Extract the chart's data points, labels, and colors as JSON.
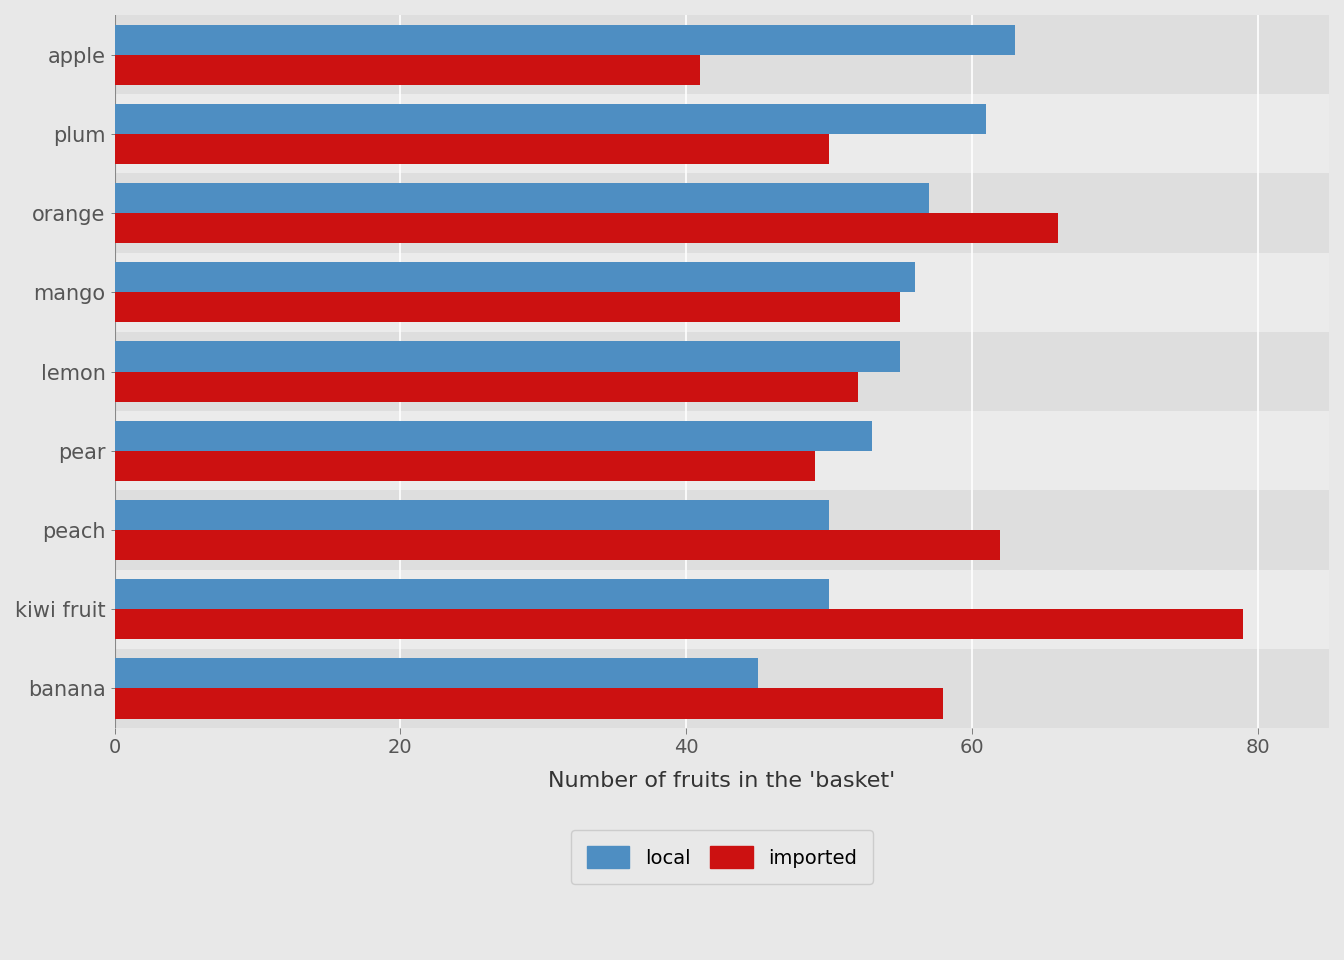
{
  "categories": [
    "apple",
    "plum",
    "orange",
    "mango",
    "lemon",
    "pear",
    "peach",
    "kiwi fruit",
    "banana"
  ],
  "local": [
    63,
    61,
    57,
    56,
    55,
    53,
    50,
    50,
    45
  ],
  "imported": [
    41,
    50,
    66,
    55,
    52,
    49,
    62,
    79,
    58
  ],
  "local_color": "#4e8ec2",
  "imported_color": "#cc1111",
  "outer_background_color": "#e8e8e8",
  "plot_bg_color": "#ebebeb",
  "band_color_dark": "#dedede",
  "band_color_light": "#ebebeb",
  "grid_color": "#ffffff",
  "xlabel": "Number of fruits in the 'basket'",
  "xlabel_fontsize": 16,
  "tick_fontsize": 14,
  "ylabel_fontsize": 15,
  "legend_fontsize": 14,
  "bar_width": 0.38,
  "xlim": [
    0,
    85
  ],
  "xticks": [
    0,
    20,
    40,
    60,
    80
  ]
}
